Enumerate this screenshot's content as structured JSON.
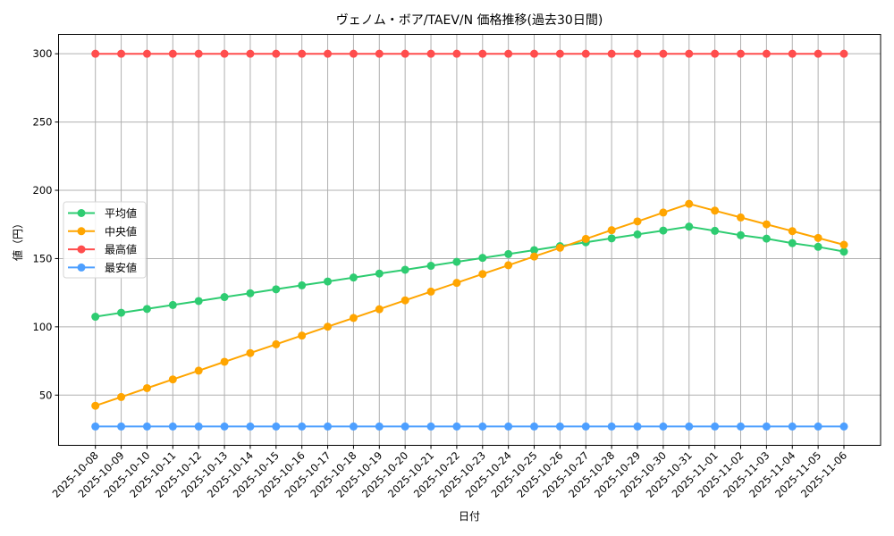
{
  "chart_data": {
    "type": "line",
    "title": "ヴェノム・ボア/TAEV/N 価格推移(過去30日間)",
    "xlabel": "日付",
    "ylabel": "値（円）",
    "ylim": [
      13.5,
      313.5
    ],
    "yticks": [
      50,
      100,
      150,
      200,
      250,
      300
    ],
    "grid": true,
    "legend_position": "center left",
    "x": [
      "2025-10-08",
      "2025-10-09",
      "2025-10-10",
      "2025-10-11",
      "2025-10-12",
      "2025-10-13",
      "2025-10-14",
      "2025-10-15",
      "2025-10-16",
      "2025-10-17",
      "2025-10-18",
      "2025-10-19",
      "2025-10-20",
      "2025-10-21",
      "2025-10-22",
      "2025-10-23",
      "2025-10-24",
      "2025-10-25",
      "2025-10-26",
      "2025-10-27",
      "2025-10-28",
      "2025-10-29",
      "2025-10-30",
      "2025-10-31",
      "2025-11-01",
      "2025-11-02",
      "2025-11-03",
      "2025-11-04",
      "2025-11-05",
      "2025-11-06"
    ],
    "series": [
      {
        "name": "平均値",
        "color": "#2ecc71",
        "values": [
          107.4,
          110.3,
          113.1,
          116.0,
          118.9,
          121.8,
          124.6,
          127.5,
          130.4,
          133.2,
          136.1,
          139.0,
          141.8,
          144.7,
          147.6,
          150.5,
          153.3,
          156.2,
          159.1,
          161.9,
          164.8,
          167.7,
          170.5,
          173.4,
          170.3,
          167.1,
          164.6,
          161.3,
          158.6,
          155.1
        ]
      },
      {
        "name": "中央値",
        "color": "#ffa500",
        "values": [
          42.2,
          48.6,
          55.1,
          61.5,
          67.9,
          74.4,
          80.8,
          87.2,
          93.6,
          100.1,
          106.5,
          112.9,
          119.4,
          125.8,
          132.2,
          138.7,
          145.1,
          151.5,
          157.9,
          164.4,
          170.8,
          177.2,
          183.7,
          190.1,
          185.1,
          180.1,
          175.1,
          170.1,
          165.1,
          160.1
        ]
      },
      {
        "name": "最高値",
        "color": "#ff4d4d",
        "values": [
          300,
          300,
          300,
          300,
          300,
          300,
          300,
          300,
          300,
          300,
          300,
          300,
          300,
          300,
          300,
          300,
          300,
          300,
          300,
          300,
          300,
          300,
          300,
          300,
          300,
          300,
          300,
          300,
          300,
          300
        ]
      },
      {
        "name": "最安値",
        "color": "#4d9fff",
        "values": [
          27,
          27,
          27,
          27,
          27,
          27,
          27,
          27,
          27,
          27,
          27,
          27,
          27,
          27,
          27,
          27,
          27,
          27,
          27,
          27,
          27,
          27,
          27,
          27,
          27,
          27,
          27,
          27,
          27,
          27
        ]
      }
    ]
  }
}
